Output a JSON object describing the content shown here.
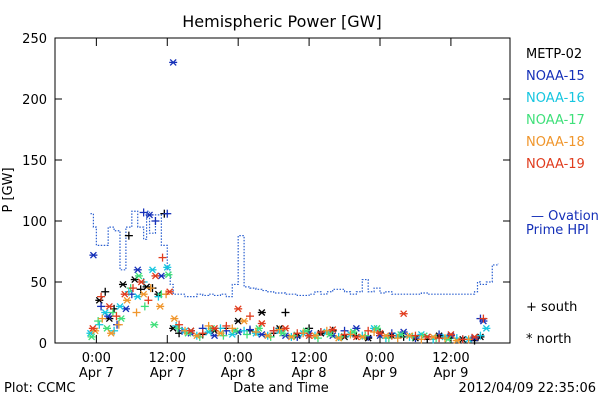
{
  "chart_data": {
    "type": "scatter",
    "title": "Hemispheric Power [GW]",
    "ylabel": "P [GW]",
    "xlabel": "Date and Time",
    "ylim": [
      0,
      250
    ],
    "yticks": [
      0,
      50,
      100,
      150,
      200,
      250
    ],
    "xlim_hours": [
      -7,
      70
    ],
    "xticks": [
      {
        "hour": 0,
        "time": "0:00",
        "date": "Apr 7"
      },
      {
        "hour": 12,
        "time": "12:00",
        "date": "Apr 7"
      },
      {
        "hour": 24,
        "time": "0:00",
        "date": "Apr 8"
      },
      {
        "hour": 36,
        "time": "12:00",
        "date": "Apr 8"
      },
      {
        "hour": 48,
        "time": "0:00",
        "date": "Apr 9"
      },
      {
        "hour": 60,
        "time": "12:00",
        "date": "Apr 9"
      }
    ],
    "footer_left": "Plot: CCMC",
    "footer_right": "2012/04/09 22:35:06",
    "symbol_legend": {
      "south": "+ south",
      "north": "* north"
    },
    "ovation": {
      "name_line1": "— Ovation",
      "name_line2": "Prime HPI",
      "color": "#2a5fd0",
      "x": [
        -1,
        -0.5,
        0,
        1,
        2,
        3,
        4,
        5,
        6,
        7,
        8,
        8.5,
        9,
        10,
        11,
        12,
        12.5,
        13,
        14,
        15,
        16,
        17,
        18,
        19,
        20,
        21,
        22,
        23,
        24,
        25,
        26,
        27,
        28,
        29,
        30,
        31,
        32,
        33,
        34,
        35,
        36,
        37,
        38,
        39,
        40,
        41,
        42,
        43,
        44,
        45,
        46,
        47,
        48,
        49,
        50,
        51,
        52,
        53,
        54,
        55,
        56,
        57,
        58,
        59,
        60,
        61,
        62,
        63,
        64,
        64.5,
        65,
        66,
        67,
        68
      ],
      "y": [
        106,
        95,
        80,
        80,
        95,
        92,
        60,
        95,
        108,
        95,
        85,
        108,
        90,
        105,
        80,
        60,
        48,
        40,
        40,
        38,
        38,
        40,
        39,
        40,
        39,
        40,
        38,
        48,
        88,
        46,
        45,
        44,
        43,
        42,
        41,
        41,
        40,
        40,
        39,
        39,
        40,
        42,
        40,
        42,
        44,
        44,
        42,
        40,
        42,
        52,
        42,
        45,
        41,
        42,
        40,
        40,
        40,
        40,
        40,
        41,
        40,
        40,
        40,
        40,
        40,
        40,
        40,
        40,
        42,
        50,
        48,
        50,
        64,
        65
      ]
    },
    "series": [
      {
        "name": "METP-02",
        "color": "#000000",
        "x": [
          0.5,
          1.5,
          2.2,
          3,
          4.5,
          5.5,
          6.5,
          7.5,
          8.5,
          9.5,
          10.5,
          11.5,
          13,
          14,
          16,
          18,
          20,
          22,
          24,
          26,
          28,
          30,
          31,
          32,
          34,
          36,
          38,
          40,
          42,
          44,
          46,
          48,
          50,
          52,
          54,
          56,
          58,
          60,
          62,
          64,
          65
        ],
        "y": [
          35,
          42,
          20,
          28,
          48,
          88,
          52,
          44,
          46,
          45,
          40,
          106,
          12,
          8,
          10,
          7,
          10,
          12,
          18,
          10,
          25,
          8,
          12,
          25,
          6,
          12,
          8,
          10,
          5,
          6,
          4,
          9,
          6,
          5,
          4,
          3,
          6,
          4,
          3,
          2,
          5
        ]
      },
      {
        "name": "NOAA-15",
        "color": "#1530b8",
        "x": [
          -0.5,
          0.8,
          2,
          3.5,
          5,
          6,
          7,
          8,
          9,
          10,
          11,
          12,
          13,
          14.5,
          16,
          18,
          20,
          22,
          24,
          26,
          28,
          30,
          32,
          34,
          36,
          38,
          40,
          42,
          44,
          46,
          48,
          50,
          52,
          54,
          56,
          58,
          60,
          62,
          64,
          65,
          65.5
        ],
        "y": [
          72,
          30,
          22,
          15,
          28,
          40,
          60,
          107,
          105,
          100,
          55,
          106,
          230,
          10,
          8,
          12,
          6,
          10,
          9,
          11,
          7,
          10,
          6,
          5,
          8,
          9,
          6,
          10,
          12,
          5,
          6,
          8,
          9,
          4,
          5,
          7,
          6,
          3,
          4,
          20,
          18
        ]
      },
      {
        "name": "NOAA-16",
        "color": "#16c6e0",
        "x": [
          -1,
          0.5,
          1.5,
          3,
          4,
          5.5,
          7,
          8,
          9.5,
          10.5,
          12,
          13.5,
          15,
          17,
          19,
          21,
          23,
          25,
          27,
          29,
          31,
          33,
          35,
          37,
          39,
          41,
          43,
          45,
          47,
          49,
          51,
          53,
          55,
          57,
          59,
          61,
          63,
          65,
          66
        ],
        "y": [
          8,
          15,
          25,
          10,
          30,
          42,
          38,
          50,
          60,
          38,
          62,
          14,
          10,
          6,
          9,
          12,
          7,
          10,
          8,
          6,
          10,
          5,
          8,
          6,
          9,
          5,
          7,
          6,
          12,
          4,
          6,
          5,
          7,
          3,
          5,
          4,
          3,
          6,
          12
        ]
      },
      {
        "name": "NOAA-17",
        "color": "#3fe07a",
        "x": [
          -0.8,
          0.3,
          1.8,
          2.8,
          4.2,
          5.8,
          7.2,
          8.2,
          9.8,
          11,
          12.2,
          13.8,
          15.5,
          17.5,
          19.5,
          21.5,
          23.5,
          25.5,
          27.5,
          29.5,
          31.5,
          33.5,
          35.5,
          37.5,
          39.5,
          41.5,
          43.5,
          45.5,
          47.5,
          49.5,
          51.5,
          53.5,
          55.5,
          57.5,
          59.5
        ],
        "y": [
          5,
          18,
          12,
          25,
          20,
          45,
          55,
          30,
          15,
          40,
          56,
          12,
          8,
          5,
          12,
          6,
          10,
          7,
          12,
          5,
          8,
          6,
          10,
          4,
          7,
          5,
          9,
          6,
          12,
          4,
          7,
          5,
          6,
          4,
          3
        ]
      },
      {
        "name": "NOAA-18",
        "color": "#f0962c",
        "x": [
          -0.2,
          1,
          2.5,
          3.8,
          5.2,
          6.8,
          8,
          9.2,
          10.8,
          11.8,
          13.2,
          15,
          17,
          19,
          21,
          23,
          25,
          27,
          29,
          31,
          33,
          35,
          37,
          39,
          41,
          43,
          45,
          47,
          49,
          51,
          53,
          55,
          57,
          59,
          61,
          63
        ],
        "y": [
          10,
          20,
          8,
          15,
          35,
          25,
          40,
          45,
          30,
          40,
          20,
          10,
          6,
          14,
          8,
          12,
          18,
          9,
          6,
          11,
          5,
          8,
          6,
          10,
          4,
          7,
          5,
          9,
          6,
          4,
          6,
          3,
          5,
          4,
          2,
          3
        ]
      },
      {
        "name": "NOAA-19",
        "color": "#e03c1e",
        "x": [
          -0.6,
          0.8,
          2.2,
          3.4,
          4.8,
          6.2,
          7.6,
          8.8,
          10,
          11.2,
          12.4,
          14,
          16,
          18,
          20,
          22,
          24,
          26,
          28,
          30,
          32,
          34,
          36,
          38,
          40,
          42,
          44,
          46,
          48,
          50,
          52,
          54,
          56,
          58,
          60,
          62,
          64,
          65.5
        ],
        "y": [
          12,
          38,
          30,
          22,
          40,
          45,
          50,
          35,
          55,
          70,
          42,
          15,
          10,
          8,
          12,
          14,
          28,
          22,
          16,
          10,
          12,
          8,
          6,
          9,
          11,
          7,
          5,
          10,
          8,
          6,
          24,
          6,
          5,
          4,
          7,
          3,
          5,
          20
        ]
      }
    ]
  }
}
